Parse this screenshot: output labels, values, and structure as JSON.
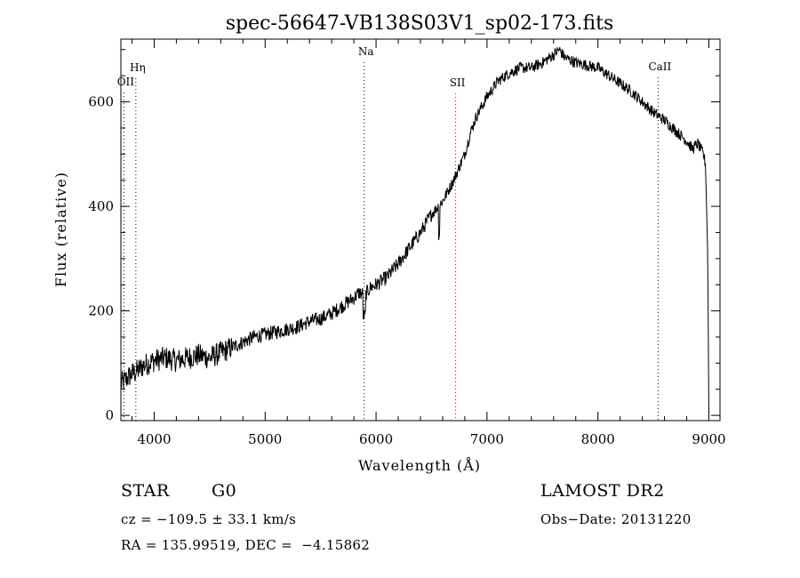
{
  "chart_data": {
    "type": "line",
    "title": "spec-56647-VB138S03V1_sp02-173.fits",
    "xlabel": "Wavelength (Å)",
    "ylabel": "Flux (relative)",
    "xlim": [
      3700,
      9100
    ],
    "ylim": [
      -10,
      720
    ],
    "xticks": [
      4000,
      5000,
      6000,
      7000,
      8000,
      9000
    ],
    "yticks": [
      0,
      200,
      400,
      600
    ],
    "grid": false,
    "series": [
      {
        "x": [
          3700,
          3750,
          3800,
          3850,
          3900,
          3950,
          4000,
          4100,
          4200,
          4300,
          4400,
          4500,
          4600,
          4700,
          4800,
          4900,
          5000,
          5100,
          5200,
          5300,
          5400,
          5500,
          5600,
          5700,
          5800,
          5850,
          5900,
          5950,
          6000,
          6100,
          6200,
          6300,
          6400,
          6500,
          6600,
          6700,
          6800,
          6850,
          6900,
          6950,
          7000,
          7100,
          7200,
          7300,
          7400,
          7500,
          7600,
          7650,
          7700,
          7800,
          7900,
          8000,
          8100,
          8200,
          8300,
          8400,
          8500,
          8600,
          8700,
          8800,
          8850,
          8900,
          8950,
          8970,
          8990,
          9000
        ],
        "y": [
          60,
          70,
          80,
          85,
          95,
          100,
          105,
          110,
          105,
          110,
          115,
          110,
          120,
          130,
          140,
          150,
          155,
          160,
          165,
          170,
          180,
          185,
          195,
          210,
          225,
          235,
          230,
          245,
          250,
          265,
          290,
          320,
          350,
          385,
          410,
          450,
          500,
          540,
          570,
          590,
          610,
          640,
          655,
          665,
          665,
          675,
          690,
          700,
          685,
          675,
          670,
          665,
          650,
          635,
          620,
          600,
          580,
          565,
          545,
          525,
          510,
          520,
          500,
          480,
          300,
          0
        ]
      }
    ],
    "lines": [
      {
        "label": "OII",
        "x": 3727,
        "color": "#000000"
      },
      {
        "label": "Hη",
        "x": 3835,
        "color": "#000000"
      },
      {
        "label": "Na",
        "x": 5893,
        "color": "#000000"
      },
      {
        "label": "SII",
        "x": 6717,
        "color": "#cc0000"
      },
      {
        "label": "CaII",
        "x": 8542,
        "color": "#000000"
      }
    ]
  },
  "info": {
    "object_type": "STAR",
    "subclass": "G0",
    "survey": "LAMOST DR2",
    "redshift": "cz = −109.5 ± 33.1 km/s",
    "obs_date": "Obs−Date: 20131220",
    "coords": "RA = 135.99519, DEC =  −4.15862"
  }
}
